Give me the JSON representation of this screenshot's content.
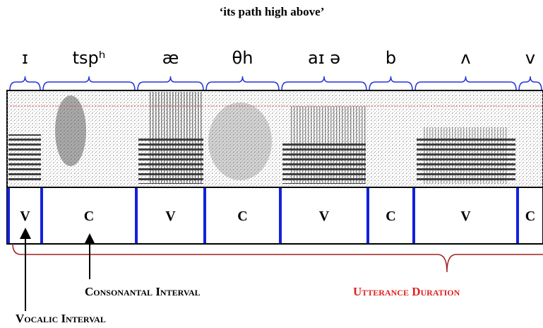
{
  "title": "‘its path high above’",
  "segments": [
    "ɪ",
    "tspʰ",
    "æ",
    "θh",
    "aɪ ə",
    "b",
    "ʌ",
    "v"
  ],
  "intervals": [
    "V",
    "C",
    "V",
    "C",
    "V",
    "C",
    "V",
    "C"
  ],
  "annotations": {
    "consonantal": "Consonantal Interval",
    "vocalic": "Vocalic Interval",
    "utterance": "Utterance Duration"
  }
}
